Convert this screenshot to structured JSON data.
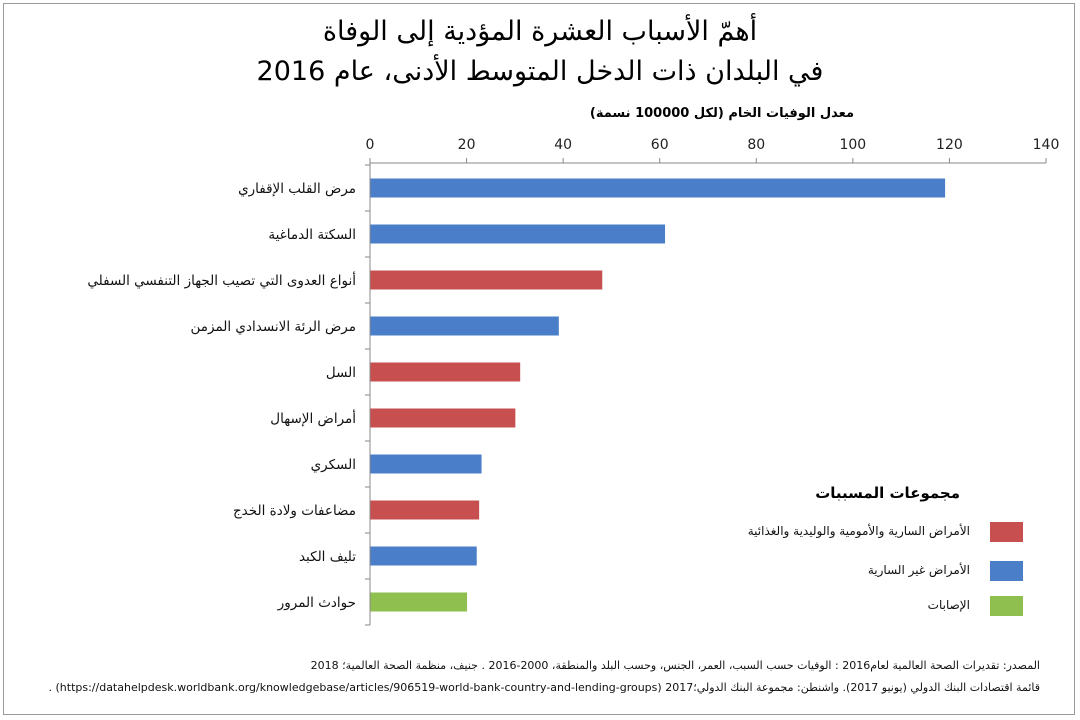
{
  "title_line1": "أهمّ الأسباب العشرة المؤدية إلى الوفاة",
  "title_line2": "في البلدان ذات الدخل المتوسط الأدنى، عام 2016",
  "colors": {
    "noncommunicable": "#4a7ec9",
    "communicable": "#c84f4f",
    "injuries": "#8fbf4f",
    "axis": "#8a8a8a",
    "grid": "#d0d0d0"
  },
  "chart_data": {
    "type": "bar",
    "orientation": "horizontal",
    "xlabel": "معدل الوفيات الخام (لكل 100000 نسمة)",
    "xlim": [
      0,
      140
    ],
    "x_ticks": [
      0,
      20,
      40,
      60,
      80,
      100,
      120,
      140
    ],
    "x_tick_labels": [
      "0",
      "20",
      "40",
      "60",
      "80",
      "100",
      "120",
      "140"
    ],
    "categories": [
      "مرض القلب الإقفاري",
      "السكتة الدماغية",
      "أنواع العدوى التي تصيب الجهاز التنفسي السفلي",
      "مرض الرئة الانسدادي المزمن",
      "السل",
      "أمراض الإسهال",
      "السكري",
      "مضاعفات ولادة الخدج",
      "تليف الكبد",
      "حوادث المرور"
    ],
    "values": [
      119,
      61,
      48,
      39,
      31,
      30,
      23,
      22.5,
      22,
      20
    ],
    "groups": [
      "noncommunicable",
      "noncommunicable",
      "communicable",
      "noncommunicable",
      "communicable",
      "communicable",
      "noncommunicable",
      "communicable",
      "noncommunicable",
      "injuries"
    ]
  },
  "legend": {
    "title": "مجموعات المسببات",
    "items": [
      {
        "key": "communicable",
        "label": "الأمراض السارية والأمومية والوليدية والغذائية"
      },
      {
        "key": "noncommunicable",
        "label": "الأمراض غير السارية"
      },
      {
        "key": "injuries",
        "label": "الإصابات"
      }
    ]
  },
  "source": {
    "line1": "المصدر: تقديرات الصحة العالمية لعام2016 : الوفيات حسب السبب، العمر، الجنس، وحسب البلد والمنطقة، 2000-2016 . جنيف، منظمة الصحة العالمية؛ 2018",
    "line2": "قائمة اقتصادات البنك الدولي (يونيو 2017). واشنطن: مجموعة البنك الدولي؛2017 (https://datahelpdesk.worldbank.org/knowledgebase/articles/906519-world-bank-country-and-lending-groups) ."
  }
}
